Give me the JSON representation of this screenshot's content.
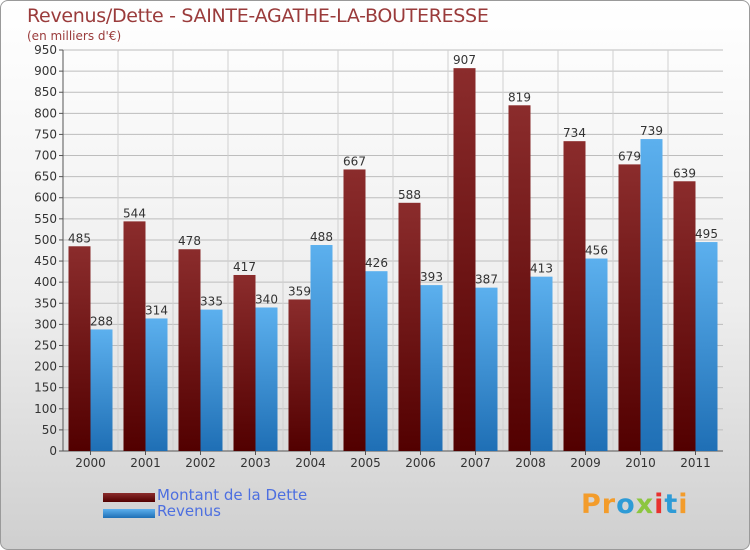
{
  "title": "Revenus/Dette - SAINTE-AGATHE-LA-BOUTERESSE",
  "subtitle": "(en milliers d'€)",
  "logo": {
    "text": "Proxiti",
    "letters": [
      {
        "char": "P",
        "color": "#f39c2b"
      },
      {
        "char": "r",
        "color": "#f39c2b"
      },
      {
        "char": "o",
        "color": "#2e9bd6"
      },
      {
        "char": "x",
        "color": "#8cc63f"
      },
      {
        "char": "i",
        "color": "#e8312f"
      },
      {
        "char": "t",
        "color": "#2e9bd6"
      },
      {
        "char": "i",
        "color": "#f39c2b"
      }
    ]
  },
  "legend": {
    "position": "bottom-left",
    "items": [
      {
        "label": "Montant de la Dette",
        "color": "#7a1a1a"
      },
      {
        "label": "Revenus",
        "color": "#3d9be0"
      }
    ]
  },
  "chart_data": {
    "type": "bar",
    "categories": [
      "2000",
      "2001",
      "2002",
      "2003",
      "2004",
      "2005",
      "2006",
      "2007",
      "2008",
      "2009",
      "2010",
      "2011"
    ],
    "series": [
      {
        "name": "Montant de la Dette",
        "color": "#7a1a1a",
        "values": [
          485,
          544,
          478,
          417,
          359,
          667,
          588,
          907,
          819,
          734,
          679,
          639
        ]
      },
      {
        "name": "Revenus",
        "color": "#3d9be0",
        "values": [
          288,
          314,
          335,
          340,
          488,
          426,
          393,
          387,
          413,
          456,
          739,
          495
        ]
      }
    ],
    "ylim": [
      0,
      950
    ],
    "yticks": [
      "0",
      "50",
      "100",
      "150",
      "200",
      "250",
      "300",
      "350",
      "400",
      "450",
      "500",
      "550",
      "600",
      "650",
      "700",
      "750",
      "800",
      "850",
      "900",
      "950"
    ],
    "grid": true
  }
}
